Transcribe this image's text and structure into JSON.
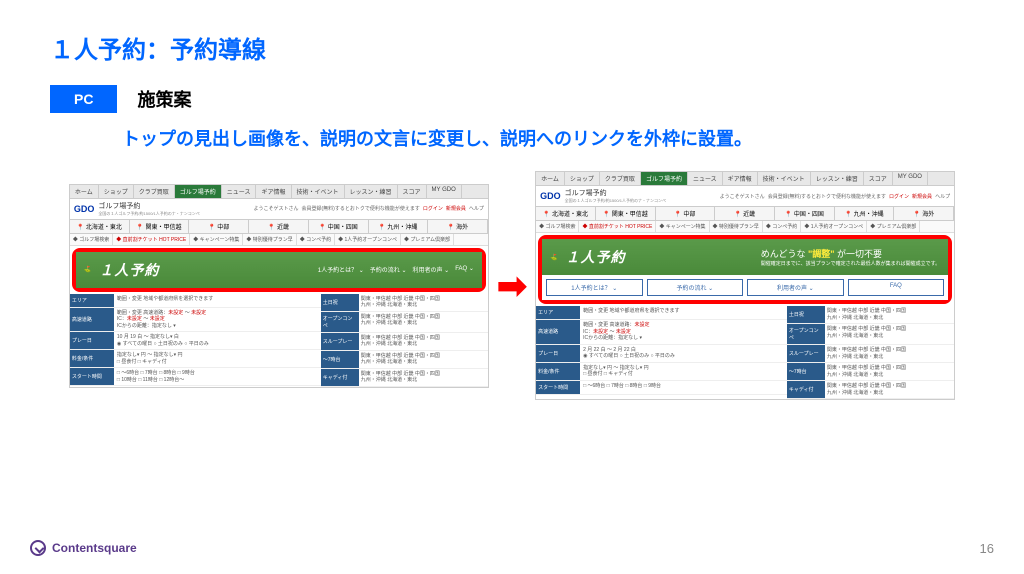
{
  "title": "１人予約：予約導線",
  "badge": "PC",
  "subtitle": "施策案",
  "description": "トップの見出し画像を、説明の文言に変更し、説明へのリンクを外枠に設置。",
  "topnav": [
    "ホーム",
    "ショップ",
    "クラブ買取",
    "ゴルフ場予約",
    "ニュース",
    "ギア情報",
    "技術・イベント",
    "レッスン・練習",
    "スコア",
    "MY GDO"
  ],
  "activeNav": "ゴルフ場予約",
  "logo": {
    "main": "GDO",
    "sub": "ゴルフ場予約",
    "tagline": "全国の１人ゴルフ予約/約1500/1人予約のナ・ナンコンペ"
  },
  "headerRight": {
    "welcome": "ようこそゲストさん",
    "msg": "会員登録(無料)するとおトクで便利な機能が使えます",
    "login": "ログイン",
    "reg": "新規会員",
    "help": "ヘルプ"
  },
  "regions": [
    "北海道・東北",
    "関東・甲信越",
    "中部",
    "近畿",
    "中国・四国",
    "九州・沖縄",
    "海外"
  ],
  "subnav": [
    "ゴルフ場検索",
    "直前割チケット HOT PRICE",
    "キャンペーン特集",
    "特別優待プラン早",
    "コンペ予約",
    "1人予約オープンコンペ",
    "プレミアム倶楽部"
  ],
  "banner": {
    "title": "１人予約",
    "links": [
      "1人予約とは？ ⌄",
      "予約の流れ ⌄",
      "利用者の声 ⌄",
      "FAQ ⌄"
    ],
    "desc1": "めんどうな",
    "desc2": "\"調整\"",
    "desc3": "が一切不要",
    "desc4": "開催確定日までに、該当プランで確定された最低人数が集まれば開催成立です。"
  },
  "tabButtons": [
    "1人予約とは？ ⌄",
    "予約の流れ ⌄",
    "利用者の声 ⌄",
    "FAQ"
  ],
  "leftFilters": [
    {
      "label": "エリア",
      "body": "範囲・変更 地域や都道府県を選択できます"
    },
    {
      "label": "高速道路",
      "body": "範囲・変更 高速道路：<span class='red'>未設定</span> ～ <span class='red'>未設定</span><br>IC：<span class='red'>未設定</span> ～ <span class='red'>未設定</span><br>ICからの距離：指定なし ▾"
    },
    {
      "label": "プレー日",
      "body": "10 月 19 白 ～ 指定なし▾ 白<br>◉ すべての曜日 ○ 土日祝のみ ○ 平日のみ"
    },
    {
      "label": "料金/条件",
      "body": "指定なし▾ 円 ～ 指定なし▾ 円<br>□ 昼食付 □ キャディ付"
    },
    {
      "label": "スタート時間",
      "body": "□ ～6時台 □ 7時台 □ 8時台 □ 9時台<br>□ 10時台 □ 11時台 □ 12時台～"
    }
  ],
  "leftFilters2": [
    {
      "label": "エリア",
      "body": "範囲・変更 地域や都道府県を選択できます"
    },
    {
      "label": "高速道路",
      "body": "範囲・変更 高速道路：<span class='red'>未設定</span><br>IC：<span class='red'>未設定</span> ～ <span class='red'>未設定</span><br>ICからの距離：指定なし ▾"
    },
    {
      "label": "プレー日",
      "body": "2 月 22 白 ～ 2 月 22 白<br>◉ すべての曜日 ○ 土日祝のみ ○ 平日のみ"
    },
    {
      "label": "料金/条件",
      "body": "指定なし▾ 円 ～ 指定なし▾ 円<br>□ 昼食付 □ キャディ付"
    },
    {
      "label": "スタート時間",
      "body": "□ ～6時台 □ 7時台 □ 8時台 □ 9時台"
    }
  ],
  "rightFilters": [
    {
      "label": "土日祝",
      "body": "関東・甲信越 中部 近畿 中国・四国<br>九州・沖縄 北海道・東北"
    },
    {
      "label": "オープンコンペ",
      "body": "関東・甲信越 中部 近畿 中国・四国<br>九州・沖縄 北海道・東北"
    },
    {
      "label": "スループレー",
      "body": "関東・甲信越 中部 近畿 中国・四国<br>九州・沖縄 北海道・東北"
    },
    {
      "label": "～7時台",
      "body": "関東・甲信越 中部 近畿 中国・四国<br>九州・沖縄 北海道・東北"
    },
    {
      "label": "キャディ付",
      "body": "関東・甲信越 中部 近畿 中国・四国<br>九州・沖縄 北海道・東北"
    }
  ],
  "footer": {
    "brand": "Contentsquare",
    "page": "16"
  }
}
